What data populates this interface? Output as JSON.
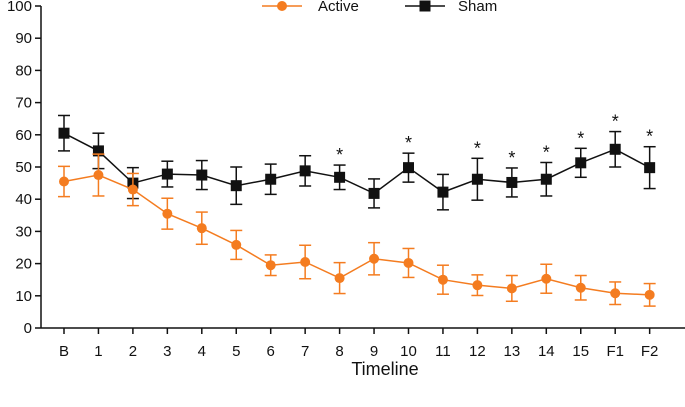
{
  "chart_data": {
    "type": "line",
    "title": "",
    "xlabel": "Timeline",
    "ylabel": "",
    "ylim": [
      0,
      100
    ],
    "yticks": [
      0,
      10,
      20,
      30,
      40,
      50,
      60,
      70,
      80,
      90,
      100
    ],
    "categories": [
      "B",
      "1",
      "2",
      "3",
      "4",
      "5",
      "6",
      "7",
      "8",
      "9",
      "10",
      "11",
      "12",
      "13",
      "14",
      "15",
      "F1",
      "F2"
    ],
    "legend_position": "top-center",
    "series": [
      {
        "name": "Active",
        "color": "#f47c20",
        "marker": "circle",
        "values": [
          45.5,
          47.5,
          43,
          35.5,
          31,
          25.8,
          19.5,
          20.5,
          15.5,
          21.5,
          20.2,
          15,
          13.3,
          12.3,
          15.3,
          12.5,
          10.8,
          10.3
        ],
        "errors": [
          4.7,
          6.5,
          5.0,
          4.8,
          5.0,
          4.5,
          3.2,
          5.2,
          4.8,
          5.0,
          4.5,
          4.5,
          3.2,
          4.0,
          4.5,
          3.8,
          3.5,
          3.5
        ]
      },
      {
        "name": "Sham",
        "color": "#111111",
        "marker": "square",
        "values": [
          60.5,
          55,
          45,
          47.8,
          47.5,
          44.2,
          46.2,
          48.8,
          46.8,
          41.8,
          49.8,
          42.2,
          46.2,
          45.2,
          46.2,
          51.3,
          55.5,
          49.8
        ],
        "errors": [
          5.5,
          5.5,
          4.8,
          4.0,
          4.5,
          5.8,
          4.7,
          4.7,
          3.8,
          4.5,
          4.5,
          5.5,
          6.5,
          4.5,
          5.2,
          4.5,
          5.5,
          6.5
        ]
      }
    ],
    "significance_marker": "*",
    "significant_categories": [
      "8",
      "10",
      "12",
      "13",
      "14",
      "15",
      "F1",
      "F2"
    ]
  }
}
